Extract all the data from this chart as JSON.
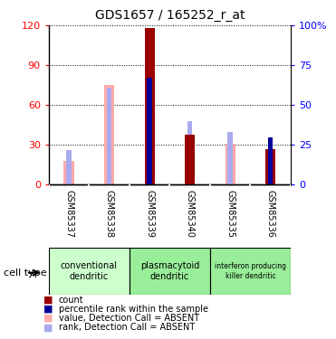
{
  "title": "GDS1657 / 165252_r_at",
  "samples": [
    "GSM85337",
    "GSM85338",
    "GSM85339",
    "GSM85340",
    "GSM85335",
    "GSM85336"
  ],
  "count_values": [
    0,
    0,
    118,
    38,
    0,
    27
  ],
  "rank_values": [
    0,
    0,
    67,
    0,
    0,
    30
  ],
  "absent_value_values": [
    18,
    75,
    0,
    0,
    31,
    0
  ],
  "absent_rank_values": [
    22,
    61,
    0,
    40,
    33,
    0
  ],
  "ylim_left": [
    0,
    120
  ],
  "ylim_right": [
    0,
    100
  ],
  "yticks_left": [
    0,
    30,
    60,
    90,
    120
  ],
  "yticks_right": [
    0,
    25,
    50,
    75,
    100
  ],
  "yticklabels_left": [
    "0",
    "30",
    "60",
    "90",
    "120"
  ],
  "yticklabels_right": [
    "0",
    "25",
    "50",
    "75",
    "100%"
  ],
  "cell_type_groups": [
    {
      "label": "conventional\ndendritic",
      "start": 0,
      "end": 2,
      "color": "#ccffcc"
    },
    {
      "label": "plasmacytoid\ndendritic",
      "start": 2,
      "end": 4,
      "color": "#99ee99"
    },
    {
      "label": "interferon producing\nkiller dendritic",
      "start": 4,
      "end": 6,
      "color": "#99ee99"
    }
  ],
  "count_color": "#990000",
  "rank_color": "#000099",
  "absent_value_color": "#ffaaaa",
  "absent_rank_color": "#aaaaee",
  "legend_items": [
    {
      "label": "count",
      "color": "#990000"
    },
    {
      "label": "percentile rank within the sample",
      "color": "#000099"
    },
    {
      "label": "value, Detection Call = ABSENT",
      "color": "#ffaaaa"
    },
    {
      "label": "rank, Detection Call = ABSENT",
      "color": "#aaaaee"
    }
  ],
  "cell_type_label": "cell type",
  "background_color": "#ffffff",
  "plot_bg_color": "#ffffff",
  "xlabel_bg_color": "#cccccc",
  "rank_scale": 1.2
}
